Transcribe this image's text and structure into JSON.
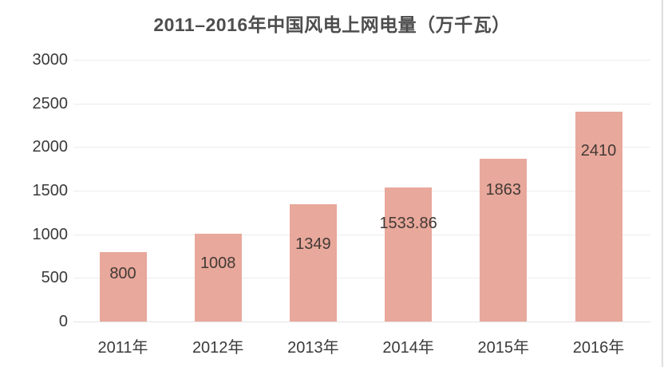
{
  "chart_data": {
    "type": "bar",
    "title": "2011–2016年中国风电上网电量（万千瓦）",
    "unit": "万千瓦",
    "categories": [
      "2011年",
      "2012年",
      "2013年",
      "2014年",
      "2015年",
      "2016年"
    ],
    "values": [
      800,
      1008,
      1349,
      1533.86,
      1863,
      2410
    ],
    "value_labels": [
      "800",
      "1008",
      "1349",
      "1533.86",
      "1863",
      "2410"
    ],
    "xlabel": "",
    "ylabel": "",
    "ylim": [
      0,
      3000
    ],
    "yticks": [
      0,
      500,
      1000,
      1500,
      2000,
      2500,
      3000
    ],
    "grid": "horizontal",
    "legend": "none",
    "data_label_position": "inside-top",
    "colors": {
      "bar": "#e8a89b",
      "title_text": "#4d4d4d",
      "axis_text": "#3a3a3a",
      "data_label_text": "#433a36",
      "gridline": "#ececec",
      "right_edge_line": "#dedede",
      "background": "#ffffff"
    }
  }
}
